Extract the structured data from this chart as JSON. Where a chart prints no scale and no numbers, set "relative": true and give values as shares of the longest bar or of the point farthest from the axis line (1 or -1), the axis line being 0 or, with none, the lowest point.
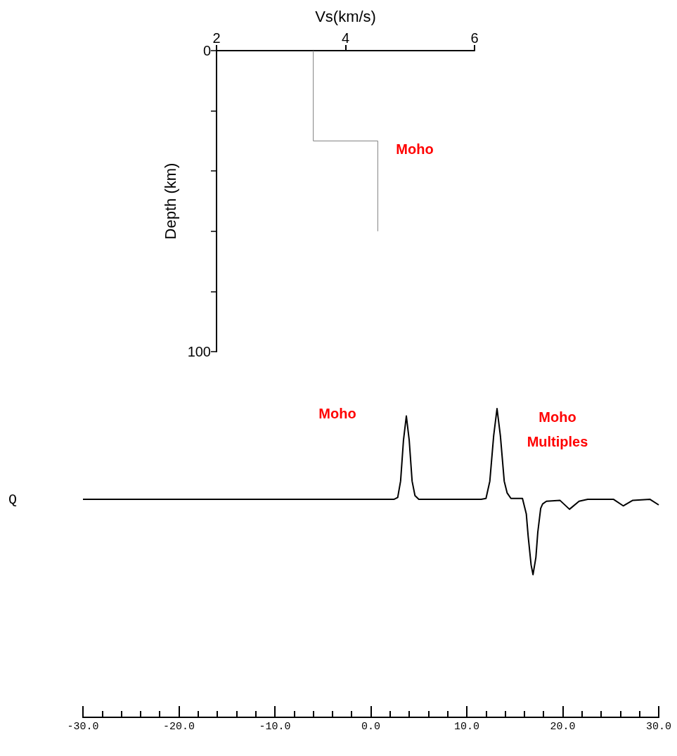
{
  "chart_data": [
    {
      "type": "line",
      "xlabel": "Vs(km/s)",
      "ylabel": "Depth (km)",
      "x": [
        3.5,
        3.5,
        4.5,
        4.5
      ],
      "values": [
        0,
        30,
        30,
        60
      ],
      "color": "#808080",
      "xlim": [
        2,
        6
      ],
      "xticks": [
        2,
        4,
        6
      ],
      "ylim": [
        100,
        0
      ],
      "yticks": [
        0,
        {
          "value": 20,
          "label": null
        },
        {
          "value": 40,
          "label": null
        },
        {
          "value": 60,
          "label": null
        },
        {
          "value": 80,
          "label": null
        },
        100
      ],
      "grid": false,
      "marker": "none",
      "line_style": "solid",
      "annotations": [
        "Moho"
      ]
    },
    {
      "type": "line",
      "ylabel": "Q",
      "relative": true,
      "color": "#000000",
      "marker": "none",
      "line_style": "solid",
      "grid": false,
      "tick_labels": "x",
      "x": [
        -30,
        2.4,
        2.8,
        3.1,
        3.4,
        3.7,
        4.0,
        4.3,
        4.6,
        5.0,
        11.5,
        12.0,
        12.4,
        12.8,
        13.15,
        13.5,
        13.9,
        14.2,
        14.6,
        15.8,
        16.2,
        16.4,
        16.7,
        16.9,
        17.2,
        17.4,
        17.7,
        17.9,
        18.3,
        19.7,
        20.7,
        21.7,
        22.6,
        25.3,
        26.3,
        27.3,
        29.1,
        30
      ],
      "values": [
        0.706,
        0.706,
        0.712,
        0.765,
        0.897,
        0.976,
        0.897,
        0.765,
        0.718,
        0.706,
        0.706,
        0.709,
        0.765,
        0.912,
        1,
        0.912,
        0.765,
        0.727,
        0.709,
        0.709,
        0.659,
        0.585,
        0.494,
        0.462,
        0.518,
        0.6,
        0.677,
        0.691,
        0.7,
        0.703,
        0.674,
        0.7,
        0.706,
        0.706,
        0.685,
        0.703,
        0.706,
        0.688
      ],
      "xlim": [
        -30,
        30
      ],
      "xticks": [
        {
          "value": -30,
          "label": "-30.0"
        },
        {
          "value": -28,
          "label": null
        },
        {
          "value": -26,
          "label": null
        },
        {
          "value": -24,
          "label": null
        },
        {
          "value": -22,
          "label": null
        },
        {
          "value": -20,
          "label": "-20.0"
        },
        {
          "value": -18,
          "label": null
        },
        {
          "value": -16,
          "label": null
        },
        {
          "value": -14,
          "label": null
        },
        {
          "value": -12,
          "label": null
        },
        {
          "value": -10,
          "label": "-10.0"
        },
        {
          "value": -8,
          "label": null
        },
        {
          "value": -6,
          "label": null
        },
        {
          "value": -4,
          "label": null
        },
        {
          "value": -2,
          "label": null
        },
        {
          "value": 0,
          "label": "0.0"
        },
        {
          "value": 2,
          "label": null
        },
        {
          "value": 4,
          "label": null
        },
        {
          "value": 6,
          "label": null
        },
        {
          "value": 8,
          "label": null
        },
        {
          "value": 10,
          "label": "10.0"
        },
        {
          "value": 12,
          "label": null
        },
        {
          "value": 14,
          "label": null
        },
        {
          "value": 16,
          "label": null
        },
        {
          "value": 18,
          "label": null
        },
        {
          "value": 20,
          "label": "20.0"
        },
        {
          "value": 22,
          "label": null
        },
        {
          "value": 24,
          "label": null
        },
        {
          "value": 26,
          "label": null
        },
        {
          "value": 28,
          "label": null
        },
        {
          "value": 30,
          "label": "30.0"
        }
      ],
      "annotations": [
        "Moho",
        "Moho\nMultiples"
      ]
    }
  ]
}
